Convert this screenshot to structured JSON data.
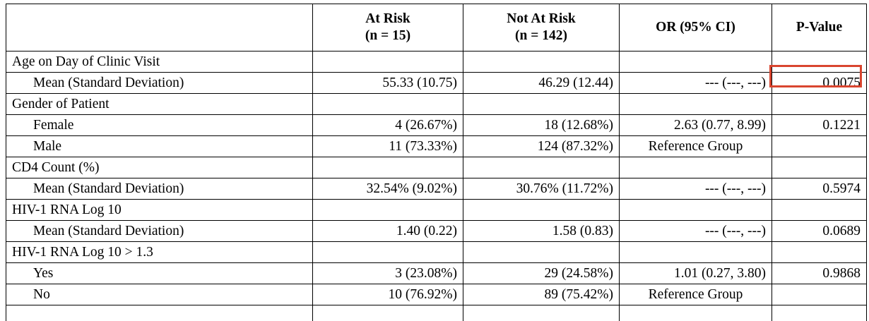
{
  "table": {
    "headers": {
      "col1": "",
      "at_risk": [
        "At Risk",
        "(n = 15)"
      ],
      "not_at_risk": [
        "Not At Risk",
        "(n = 142)"
      ],
      "or": "OR (95% CI)",
      "pvalue": "P-Value"
    },
    "sections": [
      {
        "title": "Age on Day of Clinic Visit",
        "rows": [
          {
            "label": "Mean (Standard Deviation)",
            "at_risk": "55.33 (10.75)",
            "not_at_risk": "46.29 (12.44)",
            "or": "--- (---, ---)",
            "pvalue": "0.0075"
          }
        ]
      },
      {
        "title": "Gender of Patient",
        "rows": [
          {
            "label": "Female",
            "at_risk": "4 (26.67%)",
            "not_at_risk": "18 (12.68%)",
            "or": "2.63 (0.77, 8.99)",
            "pvalue": "0.1221"
          },
          {
            "label": "Male",
            "at_risk": "11 (73.33%)",
            "not_at_risk": "124 (87.32%)",
            "or": "Reference Group",
            "pvalue": ""
          }
        ]
      },
      {
        "title": "CD4 Count (%)",
        "rows": [
          {
            "label": "Mean (Standard Deviation)",
            "at_risk": "32.54% (9.02%)",
            "not_at_risk": "30.76% (11.72%)",
            "or": "--- (---, ---)",
            "pvalue": "0.5974"
          }
        ]
      },
      {
        "title": "HIV-1 RNA Log 10",
        "rows": [
          {
            "label": "Mean (Standard Deviation)",
            "at_risk": "1.40 (0.22)",
            "not_at_risk": "1.58 (0.83)",
            "or": "--- (---, ---)",
            "pvalue": "0.0689"
          }
        ]
      },
      {
        "title": "HIV-1 RNA Log 10 > 1.3",
        "rows": [
          {
            "label": "Yes",
            "at_risk": "3 (23.08%)",
            "not_at_risk": "29 (24.58%)",
            "or": "1.01 (0.27, 3.80)",
            "pvalue": "0.9868"
          },
          {
            "label": "No",
            "at_risk": "10 (76.92%)",
            "not_at_risk": "89 (75.42%)",
            "or": "Reference Group",
            "pvalue": ""
          }
        ]
      }
    ],
    "highlight_color": "#d9452f"
  }
}
